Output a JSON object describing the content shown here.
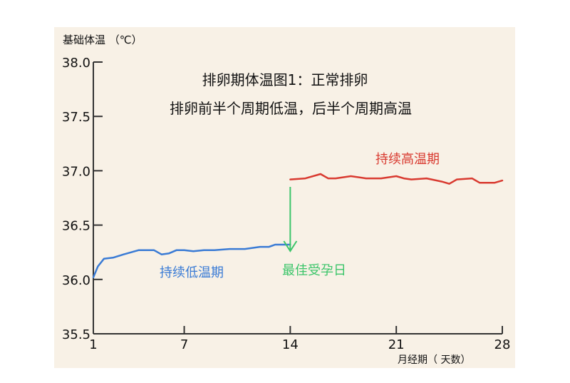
{
  "chart_data": {
    "type": "line",
    "title_lines": [
      "排卵期体温图1：正常排卵",
      "排卵前半个周期低温，后半个周期高温"
    ],
    "ylabel": "基础体温 （℃）",
    "xlabel": "月经期（ 天数）",
    "xlim": [
      1,
      28
    ],
    "ylim": [
      35.5,
      38.0
    ],
    "xticks": [
      1,
      7,
      14,
      21,
      28
    ],
    "yticks": [
      35.5,
      36.0,
      36.5,
      37.0,
      37.5,
      38.0
    ],
    "ytick_labels": [
      "35.5",
      "36.0",
      "36.5",
      "37.0",
      "37.5",
      "38.0"
    ],
    "grid": false,
    "series": [
      {
        "name": "持续低温期",
        "color": "#3a7bd5",
        "x": [
          1.0,
          1.3,
          1.7,
          2.3,
          3.0,
          4.0,
          4.6,
          5.0,
          5.5,
          6.0,
          6.5,
          7.0,
          7.6,
          8.3,
          9.0,
          10.0,
          10.6,
          11.0,
          12.0,
          12.6,
          13.0,
          13.5,
          14.0
        ],
        "values": [
          36.02,
          36.12,
          36.19,
          36.2,
          36.23,
          36.27,
          36.27,
          36.27,
          36.23,
          36.24,
          36.27,
          36.27,
          36.26,
          36.27,
          36.27,
          36.28,
          36.28,
          36.28,
          36.3,
          36.3,
          36.32,
          36.32,
          36.32
        ]
      },
      {
        "name": "持续高温期",
        "color": "#d93a30",
        "x": [
          14.0,
          15.0,
          16.0,
          16.5,
          17.0,
          18.0,
          19.0,
          20.0,
          21.0,
          21.5,
          22.0,
          23.0,
          24.0,
          24.5,
          25.0,
          26.0,
          26.5,
          27.0,
          27.5,
          28.0
        ],
        "values": [
          36.92,
          36.93,
          36.97,
          36.93,
          36.93,
          36.95,
          36.93,
          36.93,
          36.95,
          36.93,
          36.92,
          36.93,
          36.9,
          36.88,
          36.92,
          36.93,
          36.89,
          36.89,
          36.89,
          36.91
        ]
      }
    ],
    "annotations": [
      {
        "text": "最佳受孕日",
        "color": "#3cc56a",
        "x": 14
      }
    ]
  }
}
